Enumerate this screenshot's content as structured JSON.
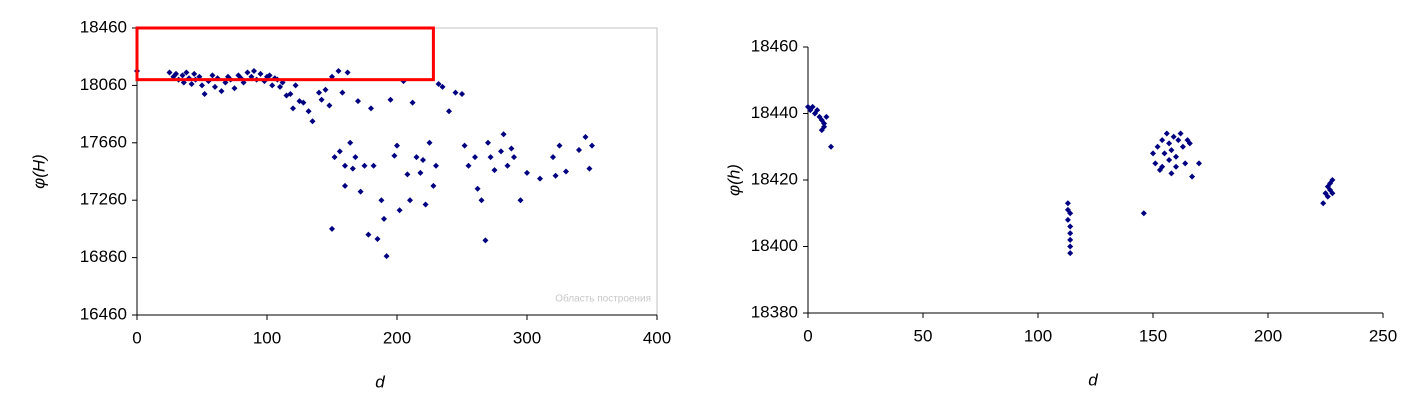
{
  "chart_data": [
    {
      "type": "scatter",
      "xlabel": "d",
      "ylabel": "φ(H)",
      "plot_area_label": "Область построения",
      "xlim": [
        0,
        400
      ],
      "xticks": [
        0,
        100,
        200,
        300,
        400
      ],
      "ylim": [
        16460,
        18460
      ],
      "yticks": [
        16460,
        16860,
        17260,
        17660,
        18060,
        18460
      ],
      "color": "#000080",
      "grid": false,
      "highlight_box": {
        "xlim": [
          0,
          228
        ],
        "ylim": [
          18100,
          18460
        ],
        "color": "#ff0000"
      },
      "x": [
        0,
        25,
        28,
        30,
        32,
        35,
        36,
        38,
        40,
        42,
        44,
        45,
        48,
        50,
        52,
        55,
        58,
        60,
        62,
        65,
        68,
        70,
        72,
        75,
        78,
        80,
        82,
        85,
        88,
        90,
        92,
        95,
        98,
        100,
        102,
        104,
        106,
        108,
        110,
        112,
        115,
        118,
        120,
        122,
        125,
        128,
        132,
        135,
        140,
        142,
        145,
        148,
        150,
        152,
        155,
        156,
        158,
        160,
        162,
        164,
        166,
        168,
        170,
        172,
        175,
        178,
        180,
        182,
        185,
        188,
        190,
        192,
        195,
        198,
        200,
        202,
        205,
        208,
        210,
        212,
        215,
        218,
        220,
        222,
        225,
        228,
        230,
        232,
        235,
        240,
        245,
        250,
        252,
        255,
        260,
        262,
        265,
        268,
        270,
        272,
        275,
        280,
        282,
        285,
        288,
        290,
        295,
        300,
        320,
        322,
        325,
        340,
        345,
        348,
        350,
        330,
        310,
        150,
        160
      ],
      "values": [
        18160,
        18150,
        18120,
        18140,
        18100,
        18130,
        18080,
        18150,
        18110,
        18070,
        18140,
        18100,
        18120,
        18060,
        18000,
        18090,
        18130,
        18050,
        18110,
        18020,
        18080,
        18120,
        18100,
        18040,
        18130,
        18110,
        18080,
        18150,
        18120,
        18160,
        18100,
        18140,
        18090,
        18120,
        18130,
        18060,
        18110,
        18100,
        18050,
        18080,
        17990,
        18000,
        17900,
        18060,
        17950,
        17940,
        17880,
        17810,
        18010,
        17960,
        18030,
        17920,
        18120,
        17560,
        18160,
        17600,
        18010,
        17500,
        18150,
        17660,
        17480,
        17560,
        17950,
        17320,
        17500,
        17020,
        17900,
        17500,
        16990,
        17260,
        17130,
        16870,
        17960,
        17570,
        17640,
        17190,
        18090,
        17440,
        17260,
        17940,
        17560,
        17450,
        17540,
        17230,
        17660,
        17360,
        17500,
        18070,
        18050,
        17880,
        18010,
        18000,
        17640,
        17500,
        17560,
        17340,
        17260,
        16980,
        17660,
        17560,
        17470,
        17600,
        17720,
        17500,
        17620,
        17560,
        17260,
        17450,
        17560,
        17430,
        17640,
        17610,
        17700,
        17480,
        17640,
        17460,
        17410,
        17060,
        17360
      ]
    },
    {
      "type": "scatter",
      "xlabel": "d",
      "ylabel": "φ(h)",
      "xlim": [
        0,
        250
      ],
      "xticks": [
        0,
        50,
        100,
        150,
        200,
        250
      ],
      "ylim": [
        18380,
        18460
      ],
      "yticks": [
        18380,
        18400,
        18420,
        18440,
        18460
      ],
      "color": "#000080",
      "grid": false,
      "x": [
        0,
        1,
        2,
        3,
        4,
        5,
        6,
        7,
        7,
        8,
        6,
        10,
        113,
        113,
        114,
        113,
        114,
        114,
        114,
        114,
        114,
        146,
        150,
        151,
        152,
        153,
        154,
        155,
        156,
        157,
        157,
        158,
        159,
        160,
        160,
        161,
        162,
        163,
        164,
        165,
        166,
        167,
        170,
        154,
        158,
        224,
        225,
        226,
        226,
        227,
        227,
        228,
        228
      ],
      "values": [
        18442,
        18441,
        18442,
        18440,
        18441,
        18439,
        18438,
        18437,
        18436,
        18439,
        18435,
        18430,
        18413,
        18411,
        18410,
        18408,
        18406,
        18404,
        18402,
        18400,
        18398,
        18410,
        18428,
        18425,
        18430,
        18423,
        18432,
        18428,
        18434,
        18431,
        18426,
        18429,
        18433,
        18427,
        18424,
        18432,
        18434,
        18430,
        18425,
        18432,
        18431,
        18421,
        18425,
        18424,
        18422,
        18413,
        18416,
        18418,
        18415,
        18419,
        18417,
        18416,
        18420
      ]
    }
  ]
}
